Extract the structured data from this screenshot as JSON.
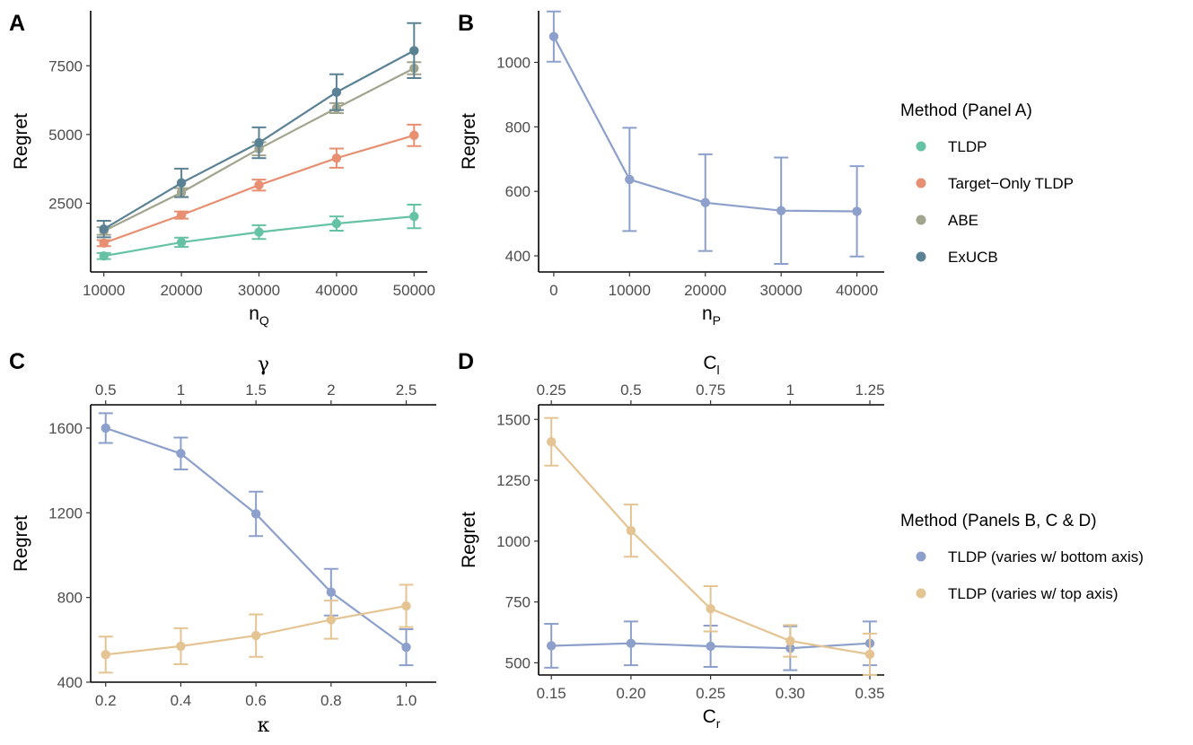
{
  "chart_data": [
    {
      "panel": "A",
      "type": "line",
      "xlabel": "n",
      "xlabel_sub": "Q",
      "ylabel": "Regret",
      "x": [
        10000,
        20000,
        30000,
        40000,
        50000
      ],
      "x_tick_labels": [
        "10000",
        "20000",
        "30000",
        "40000",
        "50000"
      ],
      "xlim": [
        8300,
        51700
      ],
      "ylim": [
        0,
        9500
      ],
      "y_ticks": [
        2500,
        5000,
        7500
      ],
      "y_tick_labels": [
        "2500",
        "5000",
        "7500"
      ],
      "series": [
        {
          "name": "TLDP",
          "color": "#66c2a5",
          "values": [
            580,
            1080,
            1450,
            1760,
            2020
          ],
          "err": [
            110,
            170,
            250,
            260,
            430
          ]
        },
        {
          "name": "Target−Only TLDP",
          "color": "#e78f70",
          "values": [
            1050,
            2070,
            3160,
            4140,
            4970
          ],
          "err": [
            110,
            130,
            200,
            350,
            390
          ]
        },
        {
          "name": "ABE",
          "color": "#a2a58d",
          "values": [
            1490,
            2890,
            4480,
            5960,
            7410
          ],
          "err": [
            140,
            160,
            240,
            180,
            220
          ]
        },
        {
          "name": "ExUCB",
          "color": "#5a8294",
          "values": [
            1560,
            3240,
            4700,
            6540,
            8050
          ],
          "err": [
            300,
            520,
            560,
            650,
            1000
          ]
        }
      ]
    },
    {
      "panel": "B",
      "type": "line",
      "xlabel": "n",
      "xlabel_sub": "P",
      "ylabel": "Regret",
      "x": [
        0,
        10000,
        20000,
        30000,
        40000
      ],
      "x_tick_labels": [
        "0",
        "10000",
        "20000",
        "30000",
        "40000"
      ],
      "xlim": [
        -2000,
        43600
      ],
      "ylim": [
        350,
        1160
      ],
      "y_ticks": [
        400,
        600,
        800,
        1000
      ],
      "y_tick_labels": [
        "400",
        "600",
        "800",
        "1000"
      ],
      "series": [
        {
          "name": "TLDP (varies w/ bottom axis)",
          "color": "#8da0cb",
          "values": [
            1080,
            637,
            565,
            540,
            538
          ],
          "err": [
            78,
            160,
            150,
            165,
            140
          ]
        }
      ]
    },
    {
      "panel": "C",
      "type": "line",
      "xlabel": "κ",
      "ylabel": "Regret",
      "x_top_label": "γ",
      "x": [
        0.2,
        0.4,
        0.6,
        0.8,
        1.0
      ],
      "x_tick_labels": [
        "0.2",
        "0.4",
        "0.6",
        "0.8",
        "1.0"
      ],
      "x_top": [
        0.5,
        1,
        1.5,
        2,
        2.5
      ],
      "x_top_tick_labels": [
        "0.5",
        "1",
        "1.5",
        "2",
        "2.5"
      ],
      "xlim": [
        0.16,
        1.08
      ],
      "ylim": [
        400,
        1710
      ],
      "y_ticks": [
        400,
        800,
        1200,
        1600
      ],
      "y_tick_labels": [
        "400",
        "800",
        "1200",
        "1600"
      ],
      "series": [
        {
          "name": "TLDP (varies w/ bottom axis)",
          "color": "#8da0cb",
          "values": [
            1600,
            1480,
            1195,
            825,
            565
          ],
          "err": [
            70,
            75,
            105,
            110,
            85
          ]
        },
        {
          "name": "TLDP (varies w/ top axis)",
          "color": "#e5c494",
          "values": [
            530,
            570,
            620,
            695,
            760
          ],
          "err": [
            85,
            85,
            100,
            90,
            100
          ]
        }
      ]
    },
    {
      "panel": "D",
      "type": "line",
      "xlabel": "C",
      "xlabel_sub": "r",
      "ylabel": "Regret",
      "x_top_label": "C",
      "x_top_label_sub": "l",
      "x": [
        0.15,
        0.2,
        0.25,
        0.3,
        0.35
      ],
      "x_tick_labels": [
        "0.15",
        "0.20",
        "0.25",
        "0.30",
        "0.35"
      ],
      "x_top": [
        0.25,
        0.5,
        0.75,
        1,
        1.25
      ],
      "x_top_tick_labels": [
        "0.25",
        "0.5",
        "0.75",
        "1",
        "1.25"
      ],
      "xlim": [
        0.142,
        0.359
      ],
      "ylim": [
        450,
        1560
      ],
      "y_ticks": [
        500,
        750,
        1000,
        1250,
        1500
      ],
      "y_tick_labels": [
        "500",
        "750",
        "1000",
        "1250",
        "1500"
      ],
      "series": [
        {
          "name": "TLDP (varies w/ bottom axis)",
          "color": "#8da0cb",
          "values": [
            570,
            580,
            568,
            560,
            580
          ],
          "err": [
            90,
            90,
            85,
            90,
            90
          ]
        },
        {
          "name": "TLDP (varies w/ top axis)",
          "color": "#e5c494",
          "values": [
            1408,
            1043,
            722,
            590,
            535
          ],
          "err": [
            98,
            107,
            93,
            65,
            85
          ]
        }
      ]
    }
  ],
  "legends": [
    {
      "title": "Method (Panel A)",
      "items": [
        {
          "label": "TLDP",
          "color": "#66c2a5"
        },
        {
          "label": "Target−Only TLDP",
          "color": "#e78f70"
        },
        {
          "label": "ABE",
          "color": "#a2a58d"
        },
        {
          "label": "ExUCB",
          "color": "#5a8294"
        }
      ]
    },
    {
      "title": "Method (Panels B, C & D)",
      "items": [
        {
          "label": "TLDP (varies w/ bottom axis)",
          "color": "#8da0cb"
        },
        {
          "label": "TLDP (varies w/ top axis)",
          "color": "#e5c494"
        }
      ]
    }
  ]
}
